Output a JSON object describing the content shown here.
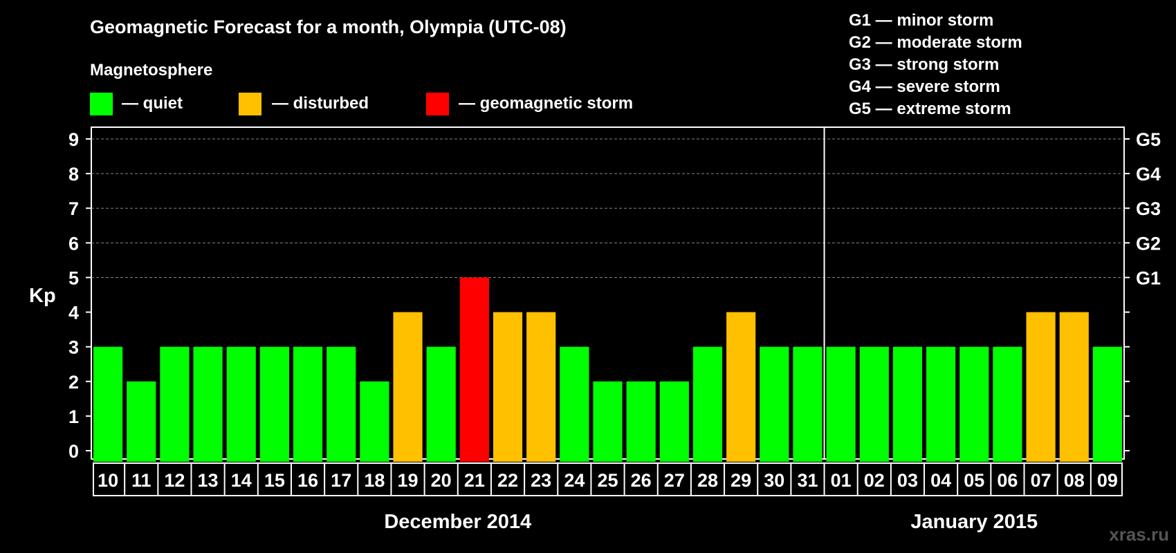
{
  "header": {
    "title": "Geomagnetic Forecast for a month, Olympia (UTC-08)",
    "legend_title": "Magnetosphere",
    "legend": [
      {
        "label": "— quiet",
        "color": "#00ff00"
      },
      {
        "label": "— disturbed",
        "color": "#ffc000"
      },
      {
        "label": "— geomagnetic storm",
        "color": "#ff0000"
      }
    ],
    "storm_levels": [
      "G1 — minor storm",
      "G2 — moderate storm",
      "G3 — strong storm",
      "G4 — severe storm",
      "G5 — extreme storm"
    ],
    "watermark": "xras.ru"
  },
  "chart_data": {
    "type": "bar",
    "ylabel": "Kp",
    "ylim": [
      0,
      9
    ],
    "yticks": [
      "0",
      "1",
      "2",
      "3",
      "4",
      "5",
      "6",
      "7",
      "8",
      "9"
    ],
    "right_ticks": [
      {
        "kp": 5,
        "label": "G1"
      },
      {
        "kp": 6,
        "label": "G2"
      },
      {
        "kp": 7,
        "label": "G3"
      },
      {
        "kp": 8,
        "label": "G4"
      },
      {
        "kp": 9,
        "label": "G5"
      }
    ],
    "grid": "dashed horizontal at 5-9",
    "categories": [
      "10",
      "11",
      "12",
      "13",
      "14",
      "15",
      "16",
      "17",
      "18",
      "19",
      "20",
      "21",
      "22",
      "23",
      "24",
      "25",
      "26",
      "27",
      "28",
      "29",
      "30",
      "31",
      "01",
      "02",
      "03",
      "04",
      "05",
      "06",
      "07",
      "08",
      "09"
    ],
    "values": [
      3,
      2,
      3,
      3,
      3,
      3,
      3,
      3,
      2,
      4,
      3,
      5,
      4,
      4,
      3,
      2,
      2,
      2,
      3,
      4,
      3,
      3,
      3,
      3,
      3,
      3,
      3,
      3,
      4,
      4,
      3
    ],
    "colors": {
      "quiet": "#00ff00",
      "disturbed": "#ffc000",
      "storm": "#ff0000"
    },
    "months": [
      {
        "label": "December 2014",
        "first_index": 0,
        "last_index": 21
      },
      {
        "label": "January 2015",
        "first_index": 22,
        "last_index": 30
      }
    ]
  }
}
